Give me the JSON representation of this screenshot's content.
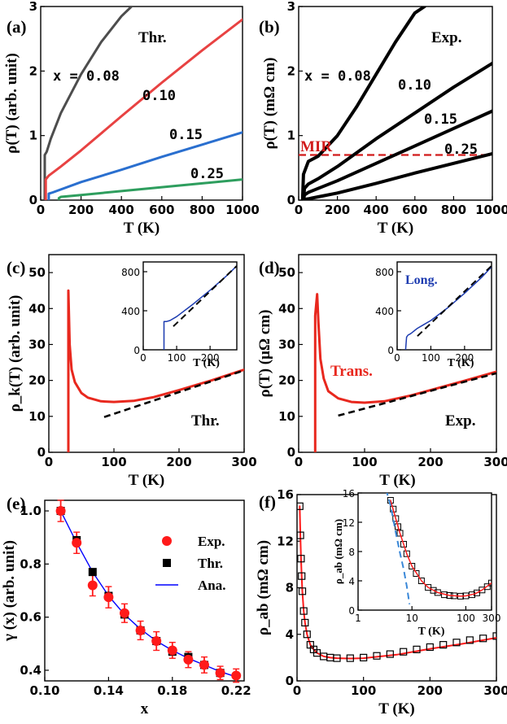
{
  "chart_data": [
    {
      "id": "a",
      "type": "line",
      "panel_label": "(a)",
      "xlabel": "T (K)",
      "ylabel": "ρ(T) (arb. unit)",
      "xlim": [
        0,
        1000
      ],
      "ylim": [
        0,
        3
      ],
      "xticks": [
        "0",
        "200",
        "400",
        "600",
        "800",
        "1000"
      ],
      "yticks": [
        "0",
        "1",
        "2",
        "3"
      ],
      "annotations": [
        "Thr.",
        "x = 0.08",
        "0.10",
        "0.15",
        "0.25"
      ],
      "series": [
        {
          "name": "x = 0.08",
          "color": "#4d4d4d",
          "x": [
            20,
            20,
            30,
            50,
            100,
            200,
            300,
            400,
            450
          ],
          "y": [
            0,
            0.7,
            0.75,
            0.95,
            1.35,
            1.95,
            2.45,
            2.85,
            3.0
          ]
        },
        {
          "name": "0.10",
          "color": "#e84242",
          "x": [
            25,
            25,
            40,
            100,
            200,
            400,
            600,
            800,
            1000
          ],
          "y": [
            0,
            0.32,
            0.38,
            0.52,
            0.77,
            1.3,
            1.82,
            2.32,
            2.8
          ]
        },
        {
          "name": "0.15",
          "color": "#2a6fcf",
          "x": [
            40,
            40,
            60,
            200,
            400,
            600,
            800,
            1000
          ],
          "y": [
            0,
            0.1,
            0.12,
            0.28,
            0.47,
            0.67,
            0.86,
            1.05
          ]
        },
        {
          "name": "0.25",
          "color": "#2e9e5e",
          "x": [
            90,
            90,
            100,
            200,
            400,
            600,
            800,
            1000
          ],
          "y": [
            0,
            0.03,
            0.05,
            0.08,
            0.14,
            0.2,
            0.26,
            0.32
          ]
        }
      ]
    },
    {
      "id": "b",
      "type": "line",
      "panel_label": "(b)",
      "xlabel": "T (K)",
      "ylabel": "ρ(T) (mΩ cm)",
      "xlim": [
        0,
        1000
      ],
      "ylim": [
        0,
        3
      ],
      "xticks": [
        "0",
        "200",
        "400",
        "600",
        "800",
        "1000"
      ],
      "yticks": [
        "0",
        "1",
        "2",
        "3"
      ],
      "annotations": [
        "Exp.",
        "x = 0.08",
        "0.10",
        "0.15",
        "0.25",
        "MIR"
      ],
      "mir_level": 0.7,
      "mir_color": "#d11a1a",
      "series": [
        {
          "name": "x = 0.08",
          "color": "#000000",
          "x": [
            20,
            25,
            50,
            100,
            200,
            300,
            400,
            500,
            600,
            650
          ],
          "y": [
            0,
            0.4,
            0.6,
            0.68,
            1.0,
            1.45,
            1.95,
            2.45,
            2.9,
            3.0
          ]
        },
        {
          "name": "0.10",
          "color": "#000000",
          "x": [
            25,
            30,
            50,
            100,
            200,
            400,
            600,
            800,
            1000
          ],
          "y": [
            0,
            0.18,
            0.25,
            0.33,
            0.52,
            0.95,
            1.35,
            1.75,
            2.12
          ]
        },
        {
          "name": "0.15",
          "color": "#000000",
          "x": [
            25,
            30,
            50,
            100,
            200,
            400,
            600,
            800,
            1000
          ],
          "y": [
            0,
            0.08,
            0.12,
            0.18,
            0.3,
            0.57,
            0.84,
            1.11,
            1.38
          ]
        },
        {
          "name": "0.25",
          "color": "#000000",
          "x": [
            25,
            30,
            50,
            100,
            200,
            400,
            600,
            800,
            1000
          ],
          "y": [
            0,
            0.01,
            0.02,
            0.05,
            0.11,
            0.26,
            0.42,
            0.57,
            0.72
          ]
        }
      ]
    },
    {
      "id": "c",
      "type": "line",
      "panel_label": "(c)",
      "xlabel": "T (K)",
      "ylabel": "ρ_k(T) (arb. unit)",
      "xlim": [
        0,
        300
      ],
      "ylim": [
        0,
        55
      ],
      "xticks": [
        "0",
        "100",
        "200",
        "300"
      ],
      "yticks": [
        "0",
        "10",
        "20",
        "30",
        "40",
        "50"
      ],
      "annotations": [
        "Thr."
      ],
      "series": [
        {
          "name": "ρk",
          "color": "#e8281e",
          "x": [
            30,
            30,
            32,
            35,
            40,
            50,
            60,
            80,
            100,
            130,
            160,
            200,
            250,
            300
          ],
          "y": [
            0,
            45,
            30,
            23,
            19.5,
            16.5,
            15.2,
            14.2,
            14.0,
            14.3,
            15.3,
            17.3,
            20.0,
            23.0
          ]
        },
        {
          "name": "linear fit",
          "color": "#000000",
          "dashed": true,
          "x": [
            85,
            300
          ],
          "y": [
            9.8,
            22.8
          ]
        }
      ],
      "inset": {
        "xlim": [
          0,
          280
        ],
        "ylim": [
          0,
          900
        ],
        "xticks": [
          "0",
          "100",
          "200"
        ],
        "yticks": [
          "0",
          "400",
          "800"
        ],
        "xlabel": "T (K)",
        "series": [
          {
            "name": "ρ",
            "color": "#1c3bb0",
            "x": [
              62,
              62,
              70,
              80,
              100,
              150,
              200,
              250,
              280
            ],
            "y": [
              0,
              290,
              290,
              300,
              340,
              470,
              610,
              760,
              860
            ]
          },
          {
            "name": "fit",
            "color": "#000000",
            "dashed": true,
            "x": [
              90,
              280
            ],
            "y": [
              240,
              860
            ]
          }
        ]
      }
    },
    {
      "id": "d",
      "type": "line",
      "panel_label": "(d)",
      "xlabel": "T (K)",
      "ylabel": "ρ(T) (μΩ cm)",
      "xlim": [
        0,
        300
      ],
      "ylim": [
        0,
        55
      ],
      "xticks": [
        "0",
        "100",
        "200",
        "300"
      ],
      "yticks": [
        "0",
        "10",
        "20",
        "30",
        "40",
        "50"
      ],
      "annotations": [
        "Trans.",
        "Exp."
      ],
      "inset_label": "Long.",
      "series": [
        {
          "name": "Trans.",
          "color": "#e8281e",
          "x": [
            25,
            25,
            28,
            30,
            33,
            38,
            45,
            60,
            80,
            100,
            130,
            170,
            200,
            250,
            300
          ],
          "y": [
            0,
            38,
            44,
            36,
            26,
            20.5,
            17,
            15,
            14.0,
            13.8,
            14.2,
            15.8,
            17.3,
            19.8,
            22.4
          ]
        },
        {
          "name": "linear fit",
          "color": "#000000",
          "dashed": true,
          "x": [
            60,
            300
          ],
          "y": [
            10.2,
            22.0
          ]
        }
      ],
      "inset": {
        "xlim": [
          0,
          280
        ],
        "ylim": [
          0,
          900
        ],
        "xticks": [
          "0",
          "100",
          "200"
        ],
        "yticks": [
          "0",
          "400",
          "800"
        ],
        "xlabel": "T (K)",
        "series": [
          {
            "name": "Long.",
            "color": "#1c3bb0",
            "x": [
              25,
              28,
              32,
              40,
              60,
              80,
              100,
              150,
              200,
              250,
              280
            ],
            "y": [
              0,
              130,
              150,
              165,
              220,
              260,
              300,
              430,
              580,
              740,
              850
            ]
          },
          {
            "name": "fit",
            "color": "#000000",
            "dashed": true,
            "x": [
              60,
              280
            ],
            "y": [
              140,
              860
            ]
          }
        ]
      }
    },
    {
      "id": "e",
      "type": "scatter",
      "panel_label": "(e)",
      "xlabel": "x",
      "ylabel": "γ (x) (arb. unit)",
      "xlim": [
        0.1,
        0.225
      ],
      "ylim": [
        0.36,
        1.04
      ],
      "xticks": [
        "0.10",
        "0.14",
        "0.18",
        "0.22"
      ],
      "yticks": [
        "0.4",
        "0.6",
        "0.8",
        "1.0"
      ],
      "legend": [
        "Exp.",
        "Thr.",
        "Ana."
      ],
      "series": [
        {
          "name": "Exp.",
          "color": "#ff1a1a",
          "marker": "circle",
          "x": [
            0.11,
            0.12,
            0.13,
            0.14,
            0.15,
            0.16,
            0.17,
            0.18,
            0.19,
            0.2,
            0.21,
            0.22
          ],
          "y": [
            1.0,
            0.88,
            0.72,
            0.675,
            0.615,
            0.55,
            0.51,
            0.475,
            0.44,
            0.42,
            0.39,
            0.38
          ],
          "err": [
            0.04,
            0.04,
            0.04,
            0.04,
            0.035,
            0.035,
            0.035,
            0.03,
            0.03,
            0.03,
            0.025,
            0.025
          ]
        },
        {
          "name": "Thr.",
          "color": "#000000",
          "marker": "square",
          "x": [
            0.11,
            0.12,
            0.13,
            0.14,
            0.15,
            0.16,
            0.17,
            0.18,
            0.19,
            0.2,
            0.21
          ],
          "y": [
            1.0,
            0.89,
            0.77,
            0.68,
            0.61,
            0.55,
            0.51,
            0.47,
            0.45,
            0.42,
            0.39
          ]
        },
        {
          "name": "Ana.",
          "color": "#0000ff",
          "marker": "line",
          "x": [
            0.11,
            0.12,
            0.13,
            0.14,
            0.15,
            0.16,
            0.17,
            0.18,
            0.19,
            0.2,
            0.21,
            0.22
          ],
          "y": [
            1.0,
            0.88,
            0.77,
            0.68,
            0.61,
            0.555,
            0.51,
            0.475,
            0.445,
            0.42,
            0.395,
            0.375
          ]
        }
      ]
    },
    {
      "id": "f",
      "type": "scatter",
      "panel_label": "(f)",
      "xlabel": "T (K)",
      "ylabel": "ρ_ab (mΩ cm)",
      "xlim": [
        0,
        300
      ],
      "ylim": [
        0,
        16
      ],
      "xticks": [
        "0",
        "100",
        "200",
        "300"
      ],
      "yticks": [
        "0",
        "4",
        "8",
        "12",
        "16"
      ],
      "series": [
        {
          "name": "Exp.",
          "color": "#000000",
          "marker": "open-square",
          "x": [
            4,
            5,
            6,
            7,
            8,
            10,
            12,
            15,
            20,
            25,
            30,
            40,
            50,
            60,
            80,
            100,
            120,
            140,
            160,
            180,
            200,
            220,
            240,
            260,
            280,
            300
          ],
          "y": [
            15.0,
            12.5,
            10.5,
            9.0,
            7.7,
            6.0,
            5.0,
            4.0,
            3.1,
            2.7,
            2.4,
            2.1,
            2.0,
            1.95,
            1.95,
            2.0,
            2.15,
            2.3,
            2.5,
            2.7,
            2.9,
            3.1,
            3.3,
            3.5,
            3.65,
            3.85
          ]
        },
        {
          "name": "Thr.",
          "color": "#ff1a1a",
          "marker": "line",
          "x": [
            4,
            5,
            6,
            7,
            8,
            10,
            12,
            15,
            20,
            25,
            30,
            40,
            50,
            60,
            80,
            100,
            150,
            200,
            250,
            300
          ],
          "y": [
            15.0,
            12.5,
            10.5,
            9.0,
            7.7,
            6.0,
            5.0,
            4.0,
            3.1,
            2.7,
            2.4,
            2.1,
            2.0,
            1.95,
            1.92,
            1.95,
            2.25,
            2.75,
            3.2,
            3.7
          ]
        }
      ],
      "inset": {
        "xscale": "log",
        "xlim": [
          1,
          300
        ],
        "ylim": [
          0,
          16
        ],
        "xticks": [
          "1",
          "10",
          "100",
          "300"
        ],
        "yticks": [
          "0",
          "4",
          "8",
          "12",
          "16"
        ],
        "xlabel": "T (K)",
        "ylabel": "ρ_ab (mΩ cm)",
        "series": [
          {
            "name": "Exp.",
            "color": "#000000",
            "marker": "open-square",
            "x": [
              4,
              4.5,
              5,
              5.5,
              6,
              7,
              8,
              10,
              12,
              15,
              20,
              25,
              30,
              40,
              50,
              60,
              80,
              100,
              130,
              160,
              200,
              250,
              300
            ],
            "y": [
              15.0,
              13.8,
              12.5,
              11.4,
              10.5,
              9.0,
              7.7,
              6.0,
              5.0,
              4.0,
              3.1,
              2.7,
              2.4,
              2.1,
              2.0,
              1.95,
              1.9,
              1.95,
              2.1,
              2.35,
              2.75,
              3.2,
              3.7
            ]
          },
          {
            "name": "Thr.",
            "color": "#ff1a1a",
            "marker": "line",
            "x": [
              4,
              5,
              6,
              8,
              10,
              15,
              20,
              30,
              50,
              80,
              100,
              150,
              200,
              300
            ],
            "y": [
              15.0,
              12.5,
              10.5,
              7.7,
              6.0,
              4.0,
              3.1,
              2.4,
              2.0,
              1.9,
              1.95,
              2.25,
              2.75,
              3.7
            ]
          },
          {
            "name": "fit",
            "color": "#3a88d8",
            "dashed": true,
            "x": [
              3.3,
              4,
              5,
              6,
              7,
              8,
              9
            ],
            "y": [
              16.5,
              14.3,
              10.6,
              7.8,
              5.6,
              3.3,
              0.8
            ]
          }
        ]
      }
    }
  ]
}
